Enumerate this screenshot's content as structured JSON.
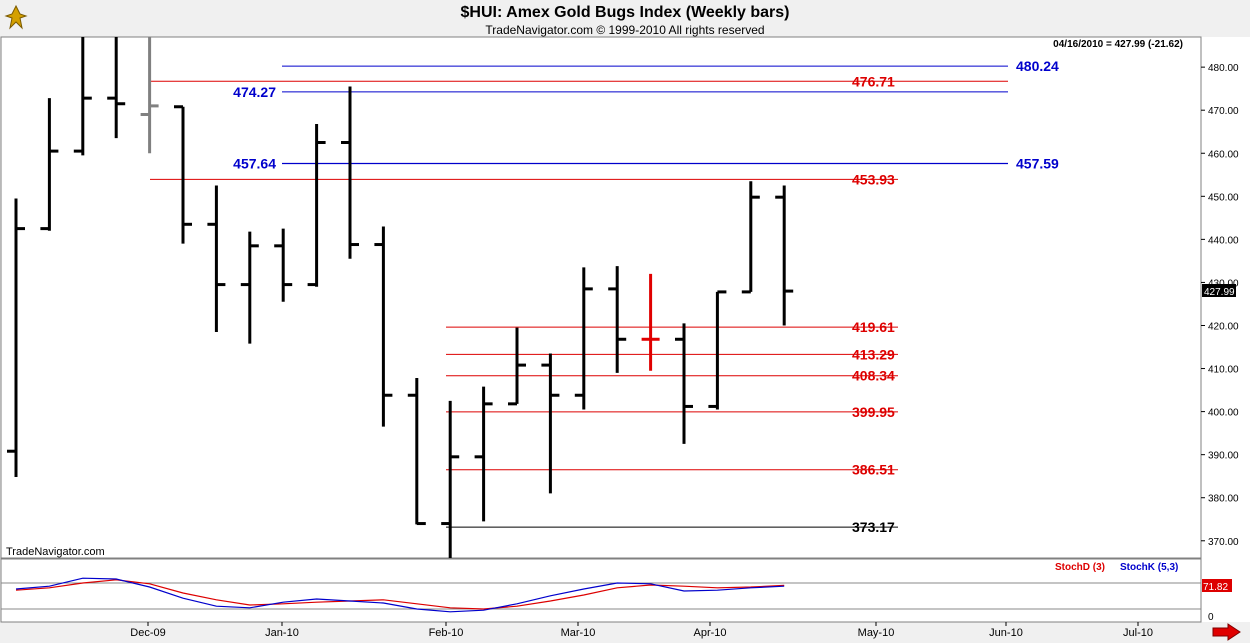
{
  "header": {
    "title": "$HUI:  Amex Gold Bugs Index  (Weekly bars)",
    "subtitle": "TradeNavigator.com © 1999-2010 All rights reserved"
  },
  "readout": "04/16/2010 = 427.99 (-21.62)",
  "watermark": "TradeNavigator.com",
  "last_price_label": "427.99",
  "chart_data": {
    "type": "ohlc",
    "ylim": [
      366,
      487
    ],
    "y_ticks": [
      "480.00",
      "470.00",
      "460.00",
      "450.00",
      "440.00",
      "430.00",
      "420.00",
      "410.00",
      "400.00",
      "390.00",
      "380.00",
      "370.00"
    ],
    "y_tick_values": [
      480,
      470,
      460,
      450,
      440,
      430,
      420,
      410,
      400,
      390,
      380,
      370
    ],
    "x_tick_labels": [
      "Dec-09",
      "Jan-10",
      "Feb-10",
      "Mar-10",
      "Apr-10",
      "May-10",
      "Jun-10",
      "Jul-10"
    ],
    "bars": [
      {
        "o": 390.8,
        "h": 449.5,
        "l": 384.8,
        "c": 442.5
      },
      {
        "o": 442.5,
        "h": 472.8,
        "l": 442.0,
        "c": 460.5
      },
      {
        "o": 460.5,
        "h": 487.0,
        "l": 459.5,
        "c": 472.8
      },
      {
        "o": 472.8,
        "h": 487.0,
        "l": 463.5,
        "c": 471.5
      },
      {
        "o": 469.0,
        "h": 487.0,
        "l": 460.0,
        "c": 471.0,
        "color": "#808080"
      },
      {
        "o": 470.8,
        "h": 470.8,
        "l": 439.0,
        "c": 443.5
      },
      {
        "o": 443.5,
        "h": 452.5,
        "l": 418.5,
        "c": 429.5
      },
      {
        "o": 429.5,
        "h": 441.8,
        "l": 415.8,
        "c": 438.5
      },
      {
        "o": 438.5,
        "h": 442.5,
        "l": 425.5,
        "c": 429.5
      },
      {
        "o": 429.5,
        "h": 466.8,
        "l": 429.0,
        "c": 462.5
      },
      {
        "o": 462.5,
        "h": 475.5,
        "l": 435.5,
        "c": 438.8
      },
      {
        "o": 438.8,
        "h": 443.0,
        "l": 396.5,
        "c": 403.8
      },
      {
        "o": 403.8,
        "h": 407.8,
        "l": 373.8,
        "c": 374.0
      },
      {
        "o": 374.0,
        "h": 402.5,
        "l": 366.0,
        "c": 389.5
      },
      {
        "o": 389.5,
        "h": 405.8,
        "l": 374.5,
        "c": 401.8
      },
      {
        "o": 401.8,
        "h": 419.5,
        "l": 401.8,
        "c": 410.8
      },
      {
        "o": 410.8,
        "h": 413.5,
        "l": 381.0,
        "c": 403.8
      },
      {
        "o": 403.8,
        "h": 433.5,
        "l": 400.5,
        "c": 428.5
      },
      {
        "o": 428.5,
        "h": 433.8,
        "l": 409.0,
        "c": 416.8
      },
      {
        "o": 416.8,
        "h": 432.0,
        "l": 409.5,
        "c": 416.8,
        "color": "#e00000"
      },
      {
        "o": 416.8,
        "h": 420.5,
        "l": 392.5,
        "c": 401.2
      },
      {
        "o": 401.2,
        "h": 427.8,
        "l": 400.5,
        "c": 427.8
      },
      {
        "o": 427.8,
        "h": 453.5,
        "l": 427.8,
        "c": 449.8
      },
      {
        "o": 449.8,
        "h": 452.5,
        "l": 420.0,
        "c": 427.99
      }
    ],
    "levels": [
      {
        "value": 480.24,
        "label": "480.24",
        "color": "#0000cc",
        "side": "right"
      },
      {
        "value": 476.71,
        "label": "476.71",
        "color": "#dd0000",
        "side": "right"
      },
      {
        "value": 474.27,
        "label": "474.27",
        "color": "#0000cc",
        "side": "left"
      },
      {
        "value": 457.64,
        "label": "457.64",
        "color": "#0000cc",
        "side": "left"
      },
      {
        "value": 457.59,
        "label": "457.59",
        "color": "#0000cc",
        "side": "right"
      },
      {
        "value": 453.93,
        "label": "453.93",
        "color": "#dd0000",
        "side": "right"
      },
      {
        "value": 419.61,
        "label": "419.61",
        "color": "#dd0000",
        "side": "right"
      },
      {
        "value": 413.29,
        "label": "413.29",
        "color": "#dd0000",
        "side": "right"
      },
      {
        "value": 408.34,
        "label": "408.34",
        "color": "#dd0000",
        "side": "right"
      },
      {
        "value": 399.95,
        "label": "399.95",
        "color": "#dd0000",
        "side": "right"
      },
      {
        "value": 386.51,
        "label": "386.51",
        "color": "#dd0000",
        "side": "right"
      },
      {
        "value": 373.17,
        "label": "373.17",
        "color": "#000000",
        "side": "right"
      }
    ],
    "stoch": {
      "d_label": "StochD (3)",
      "k_label": "StochK (5,3)",
      "value_label": "71.82",
      "zero_label": "0",
      "d_color": "#dd0000",
      "k_color": "#0000cc",
      "d_values": [
        62,
        68,
        80,
        88,
        78,
        55,
        38,
        25,
        28,
        32,
        35,
        38,
        28,
        18,
        15,
        22,
        35,
        50,
        68,
        75,
        72,
        68,
        70,
        74
      ],
      "k_values": [
        65,
        72,
        92,
        90,
        70,
        42,
        22,
        18,
        32,
        40,
        35,
        30,
        15,
        8,
        12,
        28,
        48,
        65,
        80,
        78,
        60,
        62,
        68,
        72
      ]
    }
  }
}
